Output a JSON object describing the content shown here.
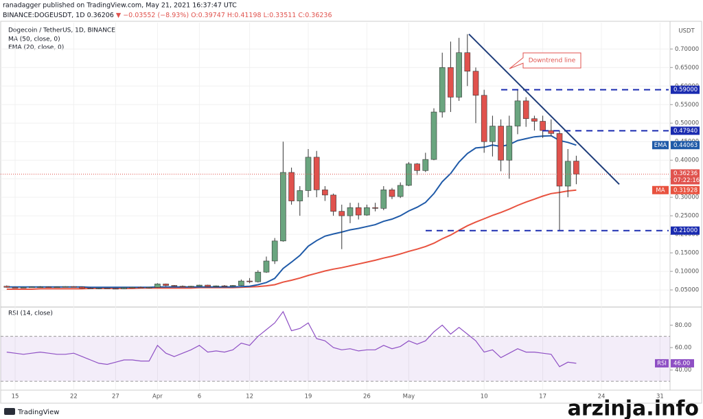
{
  "header": {
    "author_line": "ranadagger published on TradingView.com, May 21, 2021 16:37:47 UTC",
    "symbol": "BINANCE:DOGEUSDT, 1D",
    "last": "0.36206",
    "change": "▼ −0.03552 (−8.93%)",
    "ohlc": [
      "O:0.39747",
      "H:0.41198",
      "L:0.33511",
      "C:0.36236"
    ]
  },
  "footer": {
    "brand": "TradingView",
    "watermark": "arzinja.info"
  },
  "chart_data": [
    {
      "type": "candlestick",
      "title": "Dogecoin / TetherUS, 1D, BINANCE",
      "currency": "USDT",
      "categories": [
        null,
        "15",
        null,
        null,
        null,
        null,
        null,
        null,
        "22",
        null,
        null,
        null,
        null,
        "27",
        null,
        null,
        null,
        null,
        "Apr",
        null,
        null,
        null,
        null,
        "6",
        null,
        null,
        null,
        null,
        null,
        "12",
        null,
        null,
        null,
        null,
        null,
        null,
        "19",
        null,
        null,
        null,
        null,
        null,
        null,
        "26",
        null,
        null,
        null,
        null,
        "May",
        null,
        null,
        null,
        null,
        null,
        null,
        null,
        null,
        "10",
        null,
        null,
        null,
        null,
        null,
        null,
        "17",
        null,
        null,
        null,
        null,
        null,
        null,
        "24",
        null,
        null,
        null,
        null,
        null,
        null,
        "31"
      ],
      "open": [
        0.06,
        0.057,
        0.056,
        0.057,
        0.058,
        0.058,
        0.057,
        0.058,
        0.059,
        0.058,
        0.055,
        0.054,
        0.055,
        0.054,
        0.053,
        0.056,
        0.057,
        0.056,
        0.057,
        0.066,
        0.062,
        0.06,
        0.059,
        0.06,
        0.063,
        0.059,
        0.061,
        0.06,
        0.062,
        0.074,
        0.072,
        0.098,
        0.128,
        0.182,
        0.367,
        0.29,
        0.318,
        0.408,
        0.32,
        0.306,
        0.262,
        0.25,
        0.272,
        0.252,
        0.272,
        0.27,
        0.32,
        0.302,
        0.332,
        0.39,
        0.372,
        0.402,
        0.53,
        0.65,
        0.57,
        0.69,
        0.64,
        0.575,
        0.45,
        0.492,
        0.4,
        0.492,
        0.56,
        0.512,
        0.505,
        0.48,
        0.472,
        0.33,
        0.39747,
        null,
        null,
        null,
        null,
        null,
        null,
        null,
        null,
        null,
        null
      ],
      "high": [
        0.062,
        0.058,
        0.058,
        0.059,
        0.06,
        0.059,
        0.059,
        0.06,
        0.06,
        0.059,
        0.057,
        0.056,
        0.056,
        0.055,
        0.057,
        0.058,
        0.059,
        0.058,
        0.068,
        0.067,
        0.063,
        0.062,
        0.061,
        0.064,
        0.064,
        0.062,
        0.063,
        0.063,
        0.078,
        0.082,
        0.103,
        0.14,
        0.19,
        0.45,
        0.38,
        0.33,
        0.43,
        0.425,
        0.33,
        0.31,
        0.28,
        0.285,
        0.285,
        0.28,
        0.285,
        0.33,
        0.325,
        0.34,
        0.395,
        0.392,
        0.42,
        0.54,
        0.69,
        0.72,
        0.73,
        0.74,
        0.65,
        0.59,
        0.52,
        0.51,
        0.52,
        0.59,
        0.57,
        0.52,
        0.52,
        0.51,
        0.48,
        0.43,
        0.41198,
        null,
        null,
        null,
        null,
        null,
        null,
        null,
        null,
        null,
        null
      ],
      "low": [
        0.056,
        0.055,
        0.055,
        0.056,
        0.057,
        0.056,
        0.056,
        0.057,
        0.057,
        0.054,
        0.053,
        0.052,
        0.053,
        0.052,
        0.052,
        0.055,
        0.055,
        0.054,
        0.056,
        0.06,
        0.059,
        0.058,
        0.057,
        0.059,
        0.058,
        0.058,
        0.059,
        0.059,
        0.061,
        0.068,
        0.07,
        0.096,
        0.12,
        0.18,
        0.28,
        0.25,
        0.3,
        0.3,
        0.29,
        0.25,
        0.16,
        0.23,
        0.24,
        0.25,
        0.262,
        0.265,
        0.295,
        0.298,
        0.33,
        0.36,
        0.368,
        0.4,
        0.515,
        0.53,
        0.56,
        0.6,
        0.5,
        0.42,
        0.41,
        0.37,
        0.35,
        0.47,
        0.49,
        0.48,
        0.46,
        0.465,
        0.21,
        0.3,
        0.33511,
        null,
        null,
        null,
        null,
        null,
        null,
        null,
        null,
        null,
        null
      ],
      "close": [
        0.057,
        0.056,
        0.057,
        0.058,
        0.058,
        0.057,
        0.058,
        0.059,
        0.058,
        0.055,
        0.054,
        0.055,
        0.054,
        0.053,
        0.056,
        0.057,
        0.056,
        0.057,
        0.066,
        0.062,
        0.06,
        0.059,
        0.06,
        0.063,
        0.059,
        0.061,
        0.06,
        0.062,
        0.074,
        0.072,
        0.098,
        0.128,
        0.182,
        0.367,
        0.29,
        0.318,
        0.408,
        0.32,
        0.306,
        0.262,
        0.25,
        0.272,
        0.252,
        0.272,
        0.27,
        0.32,
        0.302,
        0.332,
        0.39,
        0.372,
        0.402,
        0.53,
        0.65,
        0.57,
        0.69,
        0.64,
        0.575,
        0.45,
        0.492,
        0.4,
        0.492,
        0.56,
        0.512,
        0.505,
        0.48,
        0.472,
        0.33,
        0.397,
        0.36236,
        null,
        null,
        null,
        null,
        null,
        null,
        null,
        null,
        null,
        null
      ],
      "up_color": "#6aa57f",
      "down_color": "#e0524d",
      "series": [
        {
          "name": "MA (50, close, 0)",
          "tag": "MA",
          "color": "#e8523f",
          "values": [
            0.052,
            0.052,
            0.052,
            0.052,
            0.053,
            0.053,
            0.053,
            0.053,
            0.053,
            0.053,
            0.054,
            0.054,
            0.054,
            0.054,
            0.054,
            0.054,
            0.055,
            0.055,
            0.055,
            0.055,
            0.055,
            0.055,
            0.055,
            0.056,
            0.056,
            0.056,
            0.056,
            0.056,
            0.057,
            0.058,
            0.059,
            0.061,
            0.064,
            0.071,
            0.076,
            0.082,
            0.089,
            0.095,
            0.101,
            0.106,
            0.11,
            0.115,
            0.12,
            0.125,
            0.13,
            0.136,
            0.141,
            0.147,
            0.154,
            0.16,
            0.167,
            0.176,
            0.188,
            0.198,
            0.211,
            0.223,
            0.233,
            0.242,
            0.251,
            0.259,
            0.268,
            0.278,
            0.287,
            0.295,
            0.303,
            0.31,
            0.313,
            0.317,
            0.31928,
            null,
            null,
            null,
            null,
            null,
            null,
            null,
            null,
            null,
            null
          ]
        },
        {
          "name": "EMA (20, close, 0)",
          "tag": "EMA",
          "color": "#1f5aa8",
          "values": [
            0.058,
            0.058,
            0.058,
            0.058,
            0.058,
            0.058,
            0.058,
            0.058,
            0.058,
            0.058,
            0.057,
            0.057,
            0.057,
            0.057,
            0.057,
            0.057,
            0.057,
            0.057,
            0.058,
            0.058,
            0.058,
            0.058,
            0.058,
            0.058,
            0.058,
            0.058,
            0.058,
            0.058,
            0.059,
            0.06,
            0.064,
            0.07,
            0.081,
            0.108,
            0.125,
            0.143,
            0.168,
            0.183,
            0.195,
            0.201,
            0.206,
            0.212,
            0.216,
            0.221,
            0.226,
            0.235,
            0.241,
            0.25,
            0.263,
            0.273,
            0.286,
            0.31,
            0.342,
            0.364,
            0.395,
            0.418,
            0.433,
            0.435,
            0.441,
            0.437,
            0.442,
            0.453,
            0.458,
            0.463,
            0.465,
            0.466,
            0.453,
            0.448,
            0.44063,
            null,
            null,
            null,
            null,
            null,
            null,
            null,
            null,
            null,
            null
          ]
        }
      ],
      "ylim": [
        0.0075,
        0.771
      ],
      "yticks": [
        {
          "value": 0.05,
          "label": "0.05000"
        },
        {
          "value": 0.1,
          "label": "0.10000"
        },
        {
          "value": 0.15,
          "label": "0.15000"
        },
        {
          "value": 0.2,
          "label": "0.20000"
        },
        {
          "value": 0.25,
          "label": "0.25000"
        },
        {
          "value": 0.3,
          "label": "0.30000"
        },
        {
          "value": 0.35,
          "label": "0.35000"
        },
        {
          "value": 0.4,
          "label": "0.40000"
        },
        {
          "value": 0.45,
          "label": "0.45000"
        },
        {
          "value": 0.5,
          "label": "0.50000"
        },
        {
          "value": 0.55,
          "label": "0.55000"
        },
        {
          "value": 0.6,
          "label": "0.60000"
        },
        {
          "value": 0.65,
          "label": "0.65000"
        },
        {
          "value": 0.7,
          "label": "0.70000"
        }
      ],
      "grid": true,
      "levels": [
        {
          "value": 0.59,
          "label": "0.59000"
        },
        {
          "value": 0.4794,
          "label": "0.47940"
        },
        {
          "value": 0.21,
          "label": "0.21000"
        }
      ],
      "level_color": "#1a2bb0",
      "countdown": "07:22:16",
      "trendline": {
        "text": "Downtrend line",
        "from": 0.74,
        "to": 0.335,
        "color": "#1f3d7a"
      }
    },
    {
      "type": "line",
      "title": "RSI (14, close)",
      "tag": "RSI",
      "color": "#8e4fc4",
      "values": [
        56,
        55,
        54,
        55,
        56,
        55,
        54,
        54,
        55,
        52,
        49,
        46,
        45,
        47,
        49,
        49,
        48,
        48,
        62,
        55,
        52,
        55,
        58,
        62,
        56,
        57,
        56,
        58,
        64,
        62,
        70,
        76,
        82,
        92,
        75,
        77,
        82,
        68,
        66,
        60,
        58,
        59,
        57,
        58,
        58,
        62,
        59,
        61,
        66,
        63,
        66,
        74,
        80,
        72,
        78,
        72,
        66,
        56,
        58,
        51,
        55,
        59,
        56,
        56,
        55,
        54,
        43,
        47,
        46,
        null,
        null,
        null,
        null,
        null,
        null,
        null,
        null,
        null,
        null
      ],
      "last_label": "46.00",
      "band": [
        30,
        70
      ],
      "ylim": [
        22.7,
        95.5
      ],
      "yticks": [
        {
          "value": 40,
          "label": "40.00"
        },
        {
          "value": 60,
          "label": "60.00"
        },
        {
          "value": 80,
          "label": "80.00"
        }
      ]
    }
  ]
}
